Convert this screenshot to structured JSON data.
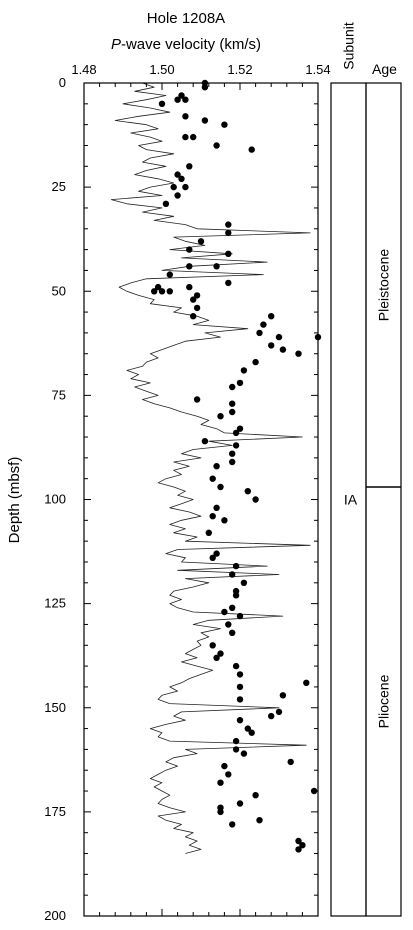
{
  "chart_data": {
    "type": "scatter",
    "title": "Hole 1208A",
    "xlabel_italic": "P",
    "xlabel_rest": "-wave velocity (km/s)",
    "ylabel": "Depth (mbsf)",
    "xlim": [
      1.48,
      1.54
    ],
    "ylim": [
      0,
      200
    ],
    "y_inverted": true,
    "x_ticks": [
      "1.48",
      "1.50",
      "1.52",
      "1.54"
    ],
    "x_tick_values": [
      1.48,
      1.5,
      1.52,
      1.54
    ],
    "y_ticks": [
      "0",
      "25",
      "50",
      "75",
      "100",
      "125",
      "150",
      "175",
      "200"
    ],
    "y_tick_values": [
      0,
      25,
      50,
      75,
      100,
      125,
      150,
      175,
      200
    ],
    "series": [
      {
        "mode": "line",
        "values": [
          [
            1.495,
            0
          ],
          [
            1.498,
            1
          ],
          [
            1.493,
            2
          ],
          [
            1.501,
            3
          ],
          [
            1.496,
            4
          ],
          [
            1.49,
            5
          ],
          [
            1.497,
            6
          ],
          [
            1.502,
            7
          ],
          [
            1.494,
            8
          ],
          [
            1.488,
            9
          ],
          [
            1.496,
            10
          ],
          [
            1.499,
            11
          ],
          [
            1.492,
            12
          ],
          [
            1.497,
            13
          ],
          [
            1.5,
            14
          ],
          [
            1.494,
            15
          ],
          [
            1.496,
            16
          ],
          [
            1.503,
            17
          ],
          [
            1.497,
            18
          ],
          [
            1.495,
            19
          ],
          [
            1.501,
            20
          ],
          [
            1.496,
            21
          ],
          [
            1.493,
            22
          ],
          [
            1.499,
            23
          ],
          [
            1.503,
            24
          ],
          [
            1.497,
            25
          ],
          [
            1.494,
            26
          ],
          [
            1.5,
            27
          ],
          [
            1.487,
            28
          ],
          [
            1.491,
            29
          ],
          [
            1.5,
            30
          ],
          [
            1.495,
            31
          ],
          [
            1.503,
            32
          ],
          [
            1.498,
            33
          ],
          [
            1.506,
            34
          ],
          [
            1.509,
            35
          ],
          [
            1.538,
            36
          ],
          [
            1.503,
            37
          ],
          [
            1.506,
            38
          ],
          [
            1.511,
            39
          ],
          [
            1.502,
            40
          ],
          [
            1.518,
            41
          ],
          [
            1.505,
            42
          ],
          [
            1.527,
            43
          ],
          [
            1.507,
            44
          ],
          [
            1.5,
            45
          ],
          [
            1.526,
            46
          ],
          [
            1.496,
            47
          ],
          [
            1.492,
            48
          ],
          [
            1.489,
            49
          ],
          [
            1.491,
            50
          ],
          [
            1.494,
            51
          ],
          [
            1.498,
            52
          ],
          [
            1.497,
            53
          ],
          [
            1.505,
            54
          ],
          [
            1.503,
            55
          ],
          [
            1.509,
            56
          ],
          [
            1.512,
            57
          ],
          [
            1.508,
            58
          ],
          [
            1.522,
            59
          ],
          [
            1.511,
            60
          ],
          [
            1.515,
            61
          ],
          [
            1.506,
            62
          ],
          [
            1.503,
            63
          ],
          [
            1.5,
            64
          ],
          [
            1.497,
            65
          ],
          [
            1.499,
            66
          ],
          [
            1.496,
            67
          ],
          [
            1.495,
            68
          ],
          [
            1.491,
            69
          ],
          [
            1.494,
            70
          ],
          [
            1.492,
            71
          ],
          [
            1.497,
            72
          ],
          [
            1.493,
            73
          ],
          [
            1.496,
            74
          ],
          [
            1.499,
            75
          ],
          [
            1.495,
            76
          ],
          [
            1.498,
            77
          ],
          [
            1.502,
            78
          ],
          [
            1.505,
            79
          ],
          [
            1.509,
            80
          ],
          [
            1.512,
            81
          ],
          [
            1.51,
            82
          ],
          [
            1.514,
            83
          ],
          [
            1.516,
            84
          ],
          [
            1.536,
            85
          ],
          [
            1.512,
            86
          ],
          [
            1.518,
            87
          ],
          [
            1.508,
            88
          ],
          [
            1.505,
            89
          ],
          [
            1.51,
            90
          ],
          [
            1.503,
            91
          ],
          [
            1.507,
            92
          ],
          [
            1.503,
            93
          ],
          [
            1.505,
            94
          ],
          [
            1.501,
            95
          ],
          [
            1.499,
            96
          ],
          [
            1.503,
            97
          ],
          [
            1.506,
            98
          ],
          [
            1.504,
            99
          ],
          [
            1.508,
            100
          ],
          [
            1.505,
            101
          ],
          [
            1.502,
            102
          ],
          [
            1.507,
            103
          ],
          [
            1.51,
            104
          ],
          [
            1.505,
            105
          ],
          [
            1.502,
            106
          ],
          [
            1.506,
            107
          ],
          [
            1.503,
            108
          ],
          [
            1.509,
            109
          ],
          [
            1.506,
            110
          ],
          [
            1.538,
            111
          ],
          [
            1.504,
            112
          ],
          [
            1.501,
            113
          ],
          [
            1.506,
            114
          ],
          [
            1.505,
            115
          ],
          [
            1.527,
            116
          ],
          [
            1.504,
            117
          ],
          [
            1.53,
            118
          ],
          [
            1.506,
            119
          ],
          [
            1.512,
            120
          ],
          [
            1.508,
            121
          ],
          [
            1.503,
            122
          ],
          [
            1.502,
            123
          ],
          [
            1.505,
            124
          ],
          [
            1.502,
            125
          ],
          [
            1.504,
            126
          ],
          [
            1.508,
            127
          ],
          [
            1.531,
            128
          ],
          [
            1.512,
            129
          ],
          [
            1.508,
            130
          ],
          [
            1.515,
            131
          ],
          [
            1.51,
            132
          ],
          [
            1.512,
            133
          ],
          [
            1.509,
            134
          ],
          [
            1.51,
            135
          ],
          [
            1.508,
            136
          ],
          [
            1.506,
            137
          ],
          [
            1.509,
            138
          ],
          [
            1.505,
            139
          ],
          [
            1.509,
            140
          ],
          [
            1.513,
            141
          ],
          [
            1.51,
            142
          ],
          [
            1.507,
            143
          ],
          [
            1.505,
            144
          ],
          [
            1.502,
            145
          ],
          [
            1.504,
            146
          ],
          [
            1.5,
            147
          ],
          [
            1.499,
            148
          ],
          [
            1.502,
            149
          ],
          [
            1.53,
            150
          ],
          [
            1.505,
            151
          ],
          [
            1.503,
            152
          ],
          [
            1.506,
            153
          ],
          [
            1.501,
            154
          ],
          [
            1.497,
            155
          ],
          [
            1.5,
            156
          ],
          [
            1.499,
            157
          ],
          [
            1.502,
            158
          ],
          [
            1.537,
            159
          ],
          [
            1.506,
            160
          ],
          [
            1.509,
            161
          ],
          [
            1.503,
            162
          ],
          [
            1.501,
            163
          ],
          [
            1.504,
            164
          ],
          [
            1.501,
            165
          ],
          [
            1.499,
            166
          ],
          [
            1.497,
            167
          ],
          [
            1.5,
            168
          ],
          [
            1.498,
            169
          ],
          [
            1.5,
            170
          ],
          [
            1.502,
            171
          ],
          [
            1.5,
            172
          ],
          [
            1.499,
            173
          ],
          [
            1.502,
            174
          ],
          [
            1.506,
            175
          ],
          [
            1.499,
            176
          ],
          [
            1.501,
            177
          ],
          [
            1.505,
            178
          ],
          [
            1.503,
            179
          ],
          [
            1.508,
            180
          ],
          [
            1.506,
            181
          ],
          [
            1.509,
            182
          ],
          [
            1.507,
            183
          ],
          [
            1.51,
            184
          ],
          [
            1.506,
            185
          ]
        ]
      },
      {
        "mode": "points",
        "values": [
          [
            1.511,
            0
          ],
          [
            1.511,
            1
          ],
          [
            1.505,
            3
          ],
          [
            1.504,
            4
          ],
          [
            1.506,
            4
          ],
          [
            1.5,
            5
          ],
          [
            1.506,
            8
          ],
          [
            1.511,
            9
          ],
          [
            1.516,
            10
          ],
          [
            1.506,
            13
          ],
          [
            1.508,
            13
          ],
          [
            1.514,
            15
          ],
          [
            1.523,
            16
          ],
          [
            1.507,
            20
          ],
          [
            1.504,
            22
          ],
          [
            1.505,
            23
          ],
          [
            1.503,
            25
          ],
          [
            1.506,
            25
          ],
          [
            1.504,
            27
          ],
          [
            1.501,
            29
          ],
          [
            1.517,
            34
          ],
          [
            1.517,
            36
          ],
          [
            1.51,
            38
          ],
          [
            1.507,
            40
          ],
          [
            1.517,
            41
          ],
          [
            1.514,
            44
          ],
          [
            1.507,
            44
          ],
          [
            1.502,
            46
          ],
          [
            1.517,
            48
          ],
          [
            1.507,
            49
          ],
          [
            1.499,
            49
          ],
          [
            1.5,
            50
          ],
          [
            1.502,
            50
          ],
          [
            1.498,
            50
          ],
          [
            1.509,
            51
          ],
          [
            1.508,
            52
          ],
          [
            1.509,
            54
          ],
          [
            1.528,
            56
          ],
          [
            1.508,
            56
          ],
          [
            1.526,
            58
          ],
          [
            1.525,
            60
          ],
          [
            1.53,
            61
          ],
          [
            1.528,
            63
          ],
          [
            1.531,
            64
          ],
          [
            1.535,
            65
          ],
          [
            1.54,
            61
          ],
          [
            1.524,
            67
          ],
          [
            1.521,
            69
          ],
          [
            1.52,
            72
          ],
          [
            1.518,
            73
          ],
          [
            1.509,
            76
          ],
          [
            1.518,
            77
          ],
          [
            1.518,
            79
          ],
          [
            1.515,
            80
          ],
          [
            1.52,
            83
          ],
          [
            1.519,
            84
          ],
          [
            1.511,
            86
          ],
          [
            1.519,
            87
          ],
          [
            1.518,
            89
          ],
          [
            1.518,
            91
          ],
          [
            1.514,
            92
          ],
          [
            1.513,
            95
          ],
          [
            1.515,
            97
          ],
          [
            1.522,
            98
          ],
          [
            1.524,
            100
          ],
          [
            1.514,
            102
          ],
          [
            1.513,
            104
          ],
          [
            1.516,
            105
          ],
          [
            1.512,
            108
          ],
          [
            1.514,
            113
          ],
          [
            1.513,
            114
          ],
          [
            1.519,
            116
          ],
          [
            1.518,
            118
          ],
          [
            1.521,
            120
          ],
          [
            1.519,
            122
          ],
          [
            1.519,
            123
          ],
          [
            1.518,
            126
          ],
          [
            1.516,
            127
          ],
          [
            1.52,
            128
          ],
          [
            1.517,
            130
          ],
          [
            1.518,
            132
          ],
          [
            1.513,
            135
          ],
          [
            1.515,
            137
          ],
          [
            1.514,
            138
          ],
          [
            1.519,
            140
          ],
          [
            1.52,
            142
          ],
          [
            1.537,
            144
          ],
          [
            1.52,
            145
          ],
          [
            1.531,
            147
          ],
          [
            1.52,
            148
          ],
          [
            1.53,
            151
          ],
          [
            1.528,
            152
          ],
          [
            1.52,
            153
          ],
          [
            1.522,
            155
          ],
          [
            1.523,
            156
          ],
          [
            1.519,
            158
          ],
          [
            1.519,
            160
          ],
          [
            1.521,
            161
          ],
          [
            1.533,
            163
          ],
          [
            1.516,
            164
          ],
          [
            1.517,
            166
          ],
          [
            1.515,
            168
          ],
          [
            1.539,
            170
          ],
          [
            1.524,
            171
          ],
          [
            1.52,
            173
          ],
          [
            1.515,
            174
          ],
          [
            1.515,
            175
          ],
          [
            1.525,
            177
          ],
          [
            1.518,
            178
          ],
          [
            1.535,
            182
          ],
          [
            1.536,
            183
          ],
          [
            1.535,
            184
          ]
        ]
      }
    ],
    "subunit": {
      "header": "Subunit",
      "label": "IA"
    },
    "age": {
      "header": "Age",
      "boundary_depth": 97,
      "upper": "Pleistocene",
      "lower": "Pliocene"
    }
  }
}
